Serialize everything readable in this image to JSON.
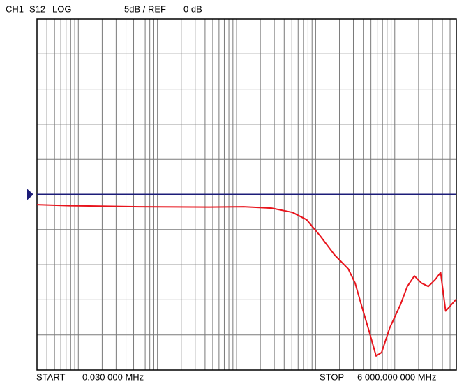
{
  "chart_data": {
    "type": "line",
    "header": [
      "CH1",
      "S12",
      "LOG",
      "5dB / REF"
    ],
    "reference_level": {
      "value": 0,
      "label": "0 dB"
    },
    "start_label": "START",
    "start_value": "0.030 000 MHz",
    "stop_label": "STOP",
    "stop_value": "6 000.000 000 MHz",
    "xscale": "log",
    "xlim": [
      0.03,
      6000
    ],
    "ylim": [
      -25,
      25
    ],
    "xticks": [
      0.03,
      0.04,
      0.05,
      0.06,
      0.07,
      0.08,
      0.09,
      0.1,
      0.2,
      0.3,
      0.4,
      0.5,
      0.6,
      0.7,
      0.8,
      0.9,
      1,
      2,
      3,
      4,
      5,
      6,
      7,
      8,
      9,
      10,
      20,
      30,
      40,
      50,
      60,
      70,
      80,
      90,
      100,
      200,
      300,
      400,
      500,
      600,
      700,
      800,
      900,
      1000,
      2000,
      3000,
      4000,
      5000,
      6000
    ],
    "yticks": [
      -25,
      -20,
      -15,
      -10,
      -5,
      0,
      5,
      10,
      15,
      20,
      25
    ],
    "grid": true,
    "grid_color": "#7a7a7a",
    "reference_color": "#1c1c78",
    "series": [
      {
        "color": "#e8141c",
        "x": [
          0.03,
          0.078,
          0.59,
          4.47,
          12.3,
          27.7,
          51,
          77,
          114,
          173,
          258,
          315,
          387,
          475,
          580,
          682,
          865,
          1190,
          1440,
          1770,
          2170,
          2660,
          3260,
          3800,
          4400,
          6000
        ],
        "values": [
          -1.45,
          -1.6,
          -1.75,
          -1.8,
          -1.75,
          -1.95,
          -2.55,
          -3.6,
          -5.9,
          -8.6,
          -10.6,
          -12.6,
          -16.1,
          -19.5,
          -23,
          -22.5,
          -19,
          -15.6,
          -13.1,
          -11.6,
          -12.6,
          -13.1,
          -12.1,
          -11.1,
          -16.6,
          -14.9
        ]
      }
    ]
  }
}
